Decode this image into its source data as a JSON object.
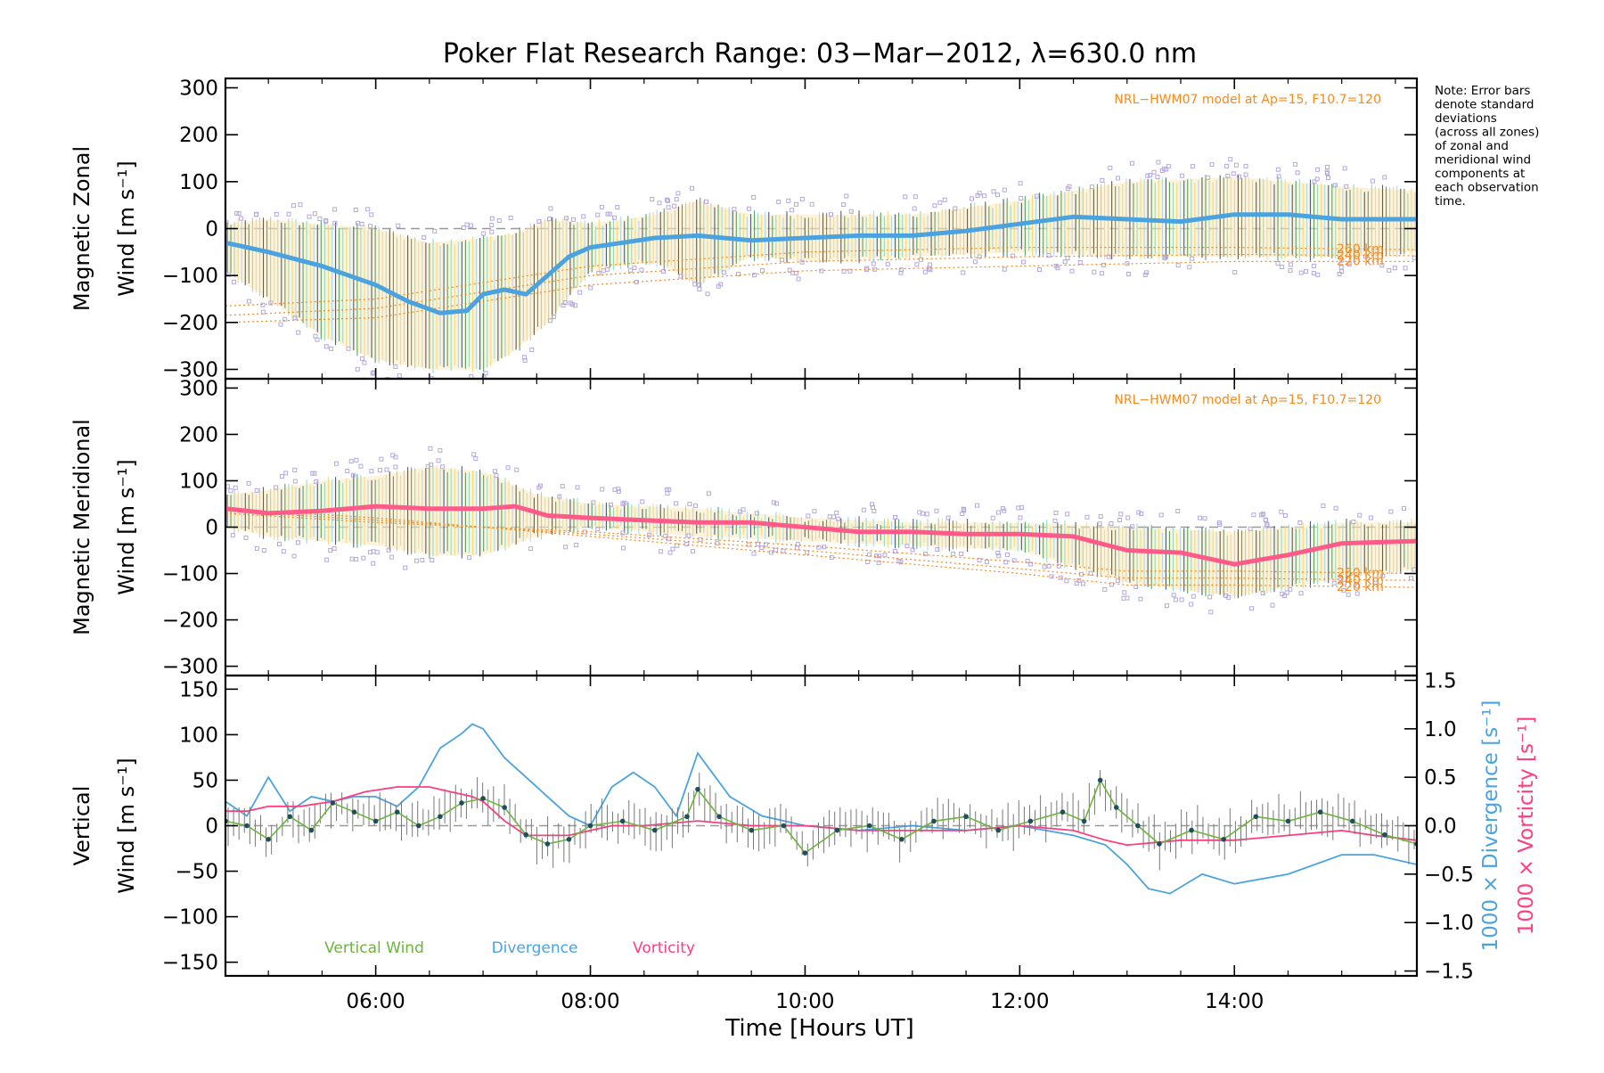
{
  "page": {
    "title": "Poker Flat Research Range: 03−Mar−2012, λ=630.0 nm",
    "note": [
      "Note: Error bars",
      "denote standard",
      "deviations",
      "(across all zones)",
      "of zonal and",
      "meridional wind",
      "components at",
      "each observation",
      "time."
    ],
    "x_axis_label": "Time [Hours UT]",
    "x_tick_labels": [
      "06:00",
      "08:00",
      "10:00",
      "12:00",
      "14:00"
    ]
  },
  "colors": {
    "zonal_mean": "#4aa3df",
    "meridional_mean": "#ff5a8a",
    "vertical": "#6db33f",
    "divergence": "#4aa3df",
    "vorticity": "#ff3d7f",
    "model": "#f58a1f",
    "outlier": "#b4a8dc"
  },
  "chart_data": [
    {
      "type": "line",
      "name": "zonal",
      "ylabel_line1": "Magnetic Zonal",
      "ylabel_line2": "Wind [m s⁻¹]",
      "model_label": "NRL−HWM07 model at Ap=15, F10.7=120",
      "model_alt_labels": [
        "260 km",
        "240 km",
        "220 km"
      ],
      "xlim": [
        4.6,
        15.7
      ],
      "ylim": [
        -320,
        320
      ],
      "y_ticks": [
        -300,
        -200,
        -100,
        0,
        100,
        200,
        300
      ],
      "x_ticks": [
        6,
        8,
        10,
        12,
        14
      ],
      "mean_wind": {
        "x": [
          4.6,
          5.0,
          5.5,
          6.0,
          6.3,
          6.6,
          6.85,
          7.0,
          7.2,
          7.4,
          7.6,
          7.8,
          8.0,
          8.3,
          8.6,
          9.0,
          9.5,
          10.0,
          10.5,
          11.0,
          11.5,
          12.0,
          12.5,
          13.0,
          13.5,
          14.0,
          14.5,
          15.0,
          15.7
        ],
        "y": [
          -30,
          -50,
          -80,
          -120,
          -155,
          -180,
          -175,
          -140,
          -130,
          -140,
          -100,
          -60,
          -40,
          -30,
          -20,
          -15,
          -25,
          -20,
          -15,
          -15,
          -5,
          10,
          25,
          20,
          15,
          30,
          30,
          20,
          20
        ]
      },
      "error_band": {
        "x": [
          4.6,
          5.0,
          5.5,
          6.0,
          6.5,
          7.0,
          7.3,
          7.6,
          8.0,
          8.6,
          9.0,
          9.5,
          10.0,
          11.0,
          12.0,
          13.0,
          14.0,
          15.0,
          15.7
        ],
        "y_upper": [
          10,
          20,
          10,
          0,
          -30,
          -20,
          -10,
          20,
          10,
          30,
          60,
          30,
          30,
          30,
          60,
          100,
          110,
          90,
          80
        ],
        "y_lower": [
          -90,
          -150,
          -230,
          -280,
          -300,
          -300,
          -260,
          -200,
          -90,
          -70,
          -120,
          -60,
          -70,
          -60,
          -50,
          -60,
          -60,
          -60,
          -50
        ]
      },
      "model_220km": {
        "x": [
          4.6,
          6,
          8,
          10,
          12,
          14,
          15.7
        ],
        "y": [
          -200,
          -190,
          -120,
          -90,
          -80,
          -70,
          -70
        ]
      },
      "model_240km": {
        "x": [
          4.6,
          6,
          8,
          10,
          12,
          14,
          15.7
        ],
        "y": [
          -185,
          -170,
          -100,
          -70,
          -60,
          -55,
          -58
        ]
      },
      "model_260km": {
        "x": [
          4.6,
          6,
          8,
          10,
          12,
          14,
          15.7
        ],
        "y": [
          -165,
          -150,
          -80,
          -50,
          -40,
          -40,
          -45
        ]
      }
    },
    {
      "type": "line",
      "name": "meridional",
      "ylabel_line1": "Magnetic Meridional",
      "ylabel_line2": "Wind [m s⁻¹]",
      "model_label": "NRL−HWM07 model at Ap=15, F10.7=120",
      "model_alt_labels": [
        "260 km",
        "240 km",
        "220 km"
      ],
      "xlim": [
        4.6,
        15.7
      ],
      "ylim": [
        -320,
        320
      ],
      "y_ticks": [
        -300,
        -200,
        -100,
        0,
        100,
        200,
        300
      ],
      "x_ticks": [
        6,
        8,
        10,
        12,
        14
      ],
      "mean_wind": {
        "x": [
          4.6,
          5.0,
          5.5,
          6.0,
          6.5,
          7.0,
          7.3,
          7.6,
          8.0,
          8.5,
          9.0,
          9.5,
          10.0,
          10.5,
          11.0,
          11.5,
          12.0,
          12.5,
          13.0,
          13.5,
          14.0,
          14.5,
          15.0,
          15.7
        ],
        "y": [
          40,
          30,
          35,
          45,
          40,
          40,
          45,
          25,
          20,
          15,
          10,
          10,
          0,
          -10,
          -10,
          -15,
          -15,
          -20,
          -50,
          -55,
          -80,
          -60,
          -35,
          -30
        ]
      },
      "error_band": {
        "x": [
          4.6,
          5.0,
          5.5,
          6.0,
          6.5,
          7.0,
          7.5,
          8.0,
          9.0,
          10.0,
          11.0,
          12.0,
          13.0,
          14.0,
          15.0,
          15.7
        ],
        "y_upper": [
          70,
          80,
          100,
          110,
          130,
          120,
          70,
          50,
          40,
          20,
          10,
          10,
          0,
          -10,
          10,
          10
        ],
        "y_lower": [
          0,
          -20,
          -30,
          -40,
          -60,
          -60,
          -20,
          0,
          -20,
          -30,
          -40,
          -50,
          -120,
          -150,
          -110,
          -90
        ]
      },
      "model_220km": {
        "x": [
          4.6,
          6,
          8,
          10,
          12,
          13,
          14,
          15.7
        ],
        "y": [
          40,
          20,
          -20,
          -60,
          -100,
          -125,
          -125,
          -130
        ]
      },
      "model_240km": {
        "x": [
          4.6,
          6,
          8,
          10,
          12,
          13,
          14,
          15.7
        ],
        "y": [
          35,
          15,
          -15,
          -50,
          -90,
          -110,
          -110,
          -115
        ]
      },
      "model_260km": {
        "x": [
          4.6,
          6,
          8,
          10,
          12,
          13,
          14,
          15.7
        ],
        "y": [
          30,
          10,
          -10,
          -40,
          -75,
          -95,
          -95,
          -100
        ]
      }
    },
    {
      "type": "line",
      "name": "vertical",
      "ylabel_left_line1": "Vertical",
      "ylabel_left_line2": "Wind [m s⁻¹]",
      "ylabel_right1": "1000 × Divergence [s⁻¹]",
      "ylabel_right2": "1000 × Vorticity [s⁻¹]",
      "legend": [
        "Vertical Wind",
        "Divergence",
        "Vorticity"
      ],
      "xlim": [
        4.6,
        15.7
      ],
      "ylim": [
        -165,
        165
      ],
      "y_ticks": [
        -150,
        -100,
        -50,
        0,
        50,
        100,
        150
      ],
      "ylim_right": [
        -1.55,
        1.55
      ],
      "y_ticks_right": [
        -1.5,
        -1.0,
        -0.5,
        0.0,
        0.5,
        1.0,
        1.5
      ],
      "y_tick_labels_right": [
        "−1.5",
        "−1.0",
        "−0.5",
        "0.0",
        "0.5",
        "1.0",
        "1.5"
      ],
      "x_ticks": [
        6,
        8,
        10,
        12,
        14
      ],
      "divergence": {
        "x": [
          4.6,
          4.8,
          5.0,
          5.2,
          5.4,
          5.6,
          5.8,
          6.0,
          6.2,
          6.4,
          6.6,
          6.8,
          6.9,
          7.0,
          7.2,
          7.4,
          7.6,
          7.8,
          8.0,
          8.2,
          8.4,
          8.6,
          8.8,
          9.0,
          9.1,
          9.3,
          9.6,
          10.0,
          10.5,
          11.0,
          11.5,
          12.0,
          12.5,
          12.8,
          13.0,
          13.2,
          13.4,
          13.7,
          14.0,
          14.5,
          15.0,
          15.3,
          15.7
        ],
        "y": [
          0.25,
          0.1,
          0.5,
          0.15,
          0.3,
          0.25,
          0.3,
          0.3,
          0.2,
          0.4,
          0.8,
          0.95,
          1.05,
          1.0,
          0.7,
          0.5,
          0.3,
          0.1,
          0.0,
          0.4,
          0.55,
          0.4,
          0.1,
          0.75,
          0.6,
          0.3,
          0.1,
          0.0,
          -0.05,
          0.0,
          -0.05,
          0.0,
          -0.1,
          -0.2,
          -0.4,
          -0.65,
          -0.7,
          -0.5,
          -0.6,
          -0.5,
          -0.3,
          -0.3,
          -0.4
        ]
      },
      "vorticity": {
        "x": [
          4.6,
          4.8,
          5.0,
          5.3,
          5.6,
          5.9,
          6.2,
          6.5,
          6.7,
          6.9,
          7.0,
          7.2,
          7.4,
          7.6,
          7.8,
          8.0,
          8.2,
          8.5,
          9.0,
          9.5,
          10.0,
          10.5,
          11.0,
          11.5,
          12.0,
          12.5,
          12.8,
          13.0,
          13.5,
          14.0,
          14.5,
          15.0,
          15.3,
          15.7
        ],
        "y": [
          0.15,
          0.15,
          0.2,
          0.2,
          0.25,
          0.35,
          0.4,
          0.4,
          0.35,
          0.3,
          0.25,
          0.05,
          -0.1,
          -0.1,
          -0.1,
          -0.05,
          0.0,
          0.0,
          0.05,
          0.0,
          0.0,
          -0.05,
          -0.05,
          -0.05,
          0.0,
          -0.05,
          -0.15,
          -0.2,
          -0.15,
          -0.15,
          -0.1,
          -0.05,
          -0.1,
          -0.15
        ]
      },
      "vertical_wind": {
        "x": [
          4.6,
          4.8,
          5.0,
          5.2,
          5.4,
          5.6,
          5.8,
          6.0,
          6.2,
          6.4,
          6.6,
          6.8,
          7.0,
          7.2,
          7.4,
          7.6,
          7.8,
          8.0,
          8.3,
          8.6,
          8.9,
          9.0,
          9.2,
          9.5,
          9.8,
          10.0,
          10.3,
          10.6,
          10.9,
          11.2,
          11.5,
          11.8,
          12.1,
          12.4,
          12.6,
          12.75,
          12.9,
          13.1,
          13.3,
          13.6,
          13.9,
          14.2,
          14.5,
          14.8,
          15.1,
          15.4,
          15.7
        ],
        "y": [
          5,
          0,
          -15,
          10,
          -5,
          25,
          15,
          5,
          15,
          0,
          10,
          25,
          30,
          20,
          -10,
          -20,
          -15,
          0,
          5,
          -5,
          10,
          40,
          10,
          -5,
          0,
          -30,
          -5,
          0,
          -15,
          5,
          10,
          -5,
          5,
          15,
          5,
          50,
          20,
          0,
          -20,
          -5,
          -15,
          10,
          5,
          15,
          5,
          -10,
          -20
        ]
      }
    }
  ]
}
